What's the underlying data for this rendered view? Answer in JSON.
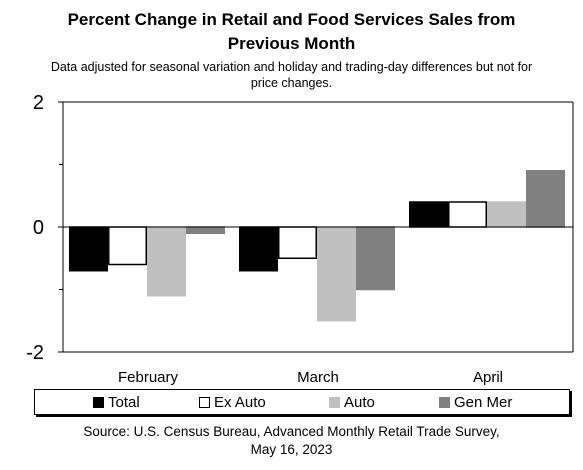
{
  "title_lines": [
    "Percent Change in Retail and Food Services Sales from",
    "Previous Month"
  ],
  "subtitle_lines": [
    "Data adjusted for seasonal variation and holiday and trading-day differences but not for",
    "price changes."
  ],
  "source_lines": [
    "Source: U.S. Census Bureau, Advanced Monthly Retail Trade Survey,",
    "May 16, 2023"
  ],
  "chart_data": {
    "type": "bar",
    "categories": [
      "February",
      "March",
      "April"
    ],
    "series": [
      {
        "name": "Total",
        "values": [
          -0.7,
          -0.7,
          0.4
        ],
        "fill": "#000000",
        "stroke": "#000000"
      },
      {
        "name": "Ex Auto",
        "values": [
          -0.6,
          -0.5,
          0.4
        ],
        "fill": "#ffffff",
        "stroke": "#000000"
      },
      {
        "name": "Auto",
        "values": [
          -1.1,
          -1.5,
          0.4
        ],
        "fill": "#c0c0c0",
        "stroke": "#c0c0c0"
      },
      {
        "name": "Gen Mer",
        "values": [
          -0.1,
          -1.0,
          0.9
        ],
        "fill": "#808080",
        "stroke": "#808080"
      }
    ],
    "ylim": [
      -2,
      2
    ],
    "yticks": [
      -2,
      0,
      2
    ],
    "ytick_labels": [
      "-2",
      "0",
      "2"
    ],
    "grid": false,
    "legend_position": "bottom"
  }
}
